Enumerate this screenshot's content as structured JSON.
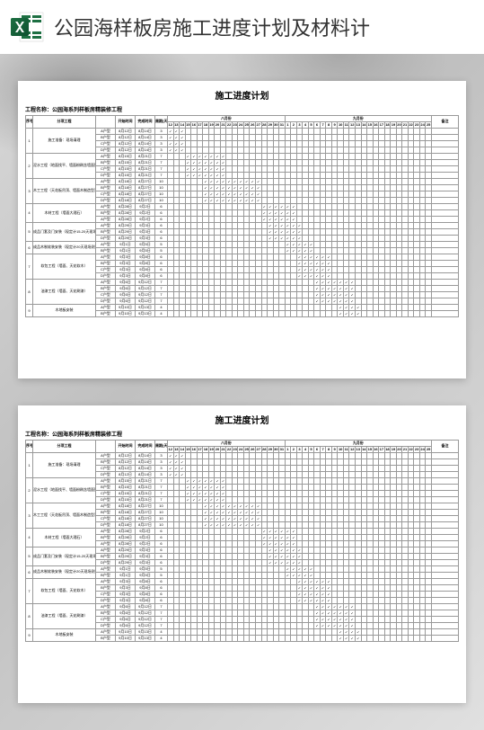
{
  "header": {
    "title": "公园海样板房施工进度计划及材料计",
    "icon": "excel-icon"
  },
  "sheet": {
    "title": "施工进度计划",
    "project_label": "工程名称：公园海系列样板房精装修工程",
    "columns": {
      "seq": "序号",
      "task": "分项工程",
      "start": "开始时间",
      "end": "完成时间",
      "days": "周期(天)",
      "month1": "八月份",
      "month2": "九月份",
      "remark": "备注"
    },
    "month1_days": [
      12,
      13,
      14,
      15,
      16,
      17,
      18,
      19,
      20,
      21,
      22,
      23,
      24,
      25,
      26,
      27,
      28,
      29,
      30,
      31
    ],
    "month2_days": [
      1,
      2,
      3,
      4,
      5,
      6,
      7,
      8,
      9,
      10,
      11,
      12,
      13,
      14,
      15,
      16,
      17,
      18,
      19,
      20,
      21,
      22,
      23,
      24,
      25
    ],
    "tasks": [
      {
        "seq": 1,
        "name": "施工准备：现场清理",
        "rows": [
          {
            "sub": "A户型",
            "start": "8月12日",
            "end": "8月14日",
            "days": 3,
            "bar": [
              0,
              2
            ]
          },
          {
            "sub": "B户型",
            "start": "8月12日",
            "end": "8月14日",
            "days": 3,
            "bar": [
              0,
              2
            ]
          },
          {
            "sub": "C户型",
            "start": "8月12日",
            "end": "8月14日",
            "days": 3,
            "bar": [
              0,
              2
            ]
          },
          {
            "sub": "D户型",
            "start": "8月12日",
            "end": "8月14日",
            "days": 3,
            "bar": [
              0,
              2
            ]
          }
        ]
      },
      {
        "seq": 2,
        "name": "泥水工程（地面找平、墙面粉刷含墙面腻子）",
        "rows": [
          {
            "sub": "A户型",
            "start": "8月15日",
            "end": "8月21日",
            "days": 7,
            "bar": [
              3,
              9
            ]
          },
          {
            "sub": "B户型",
            "start": "8月15日",
            "end": "8月21日",
            "days": 7,
            "bar": [
              3,
              9
            ]
          },
          {
            "sub": "C户型",
            "start": "8月15日",
            "end": "8月21日",
            "days": 7,
            "bar": [
              3,
              9
            ]
          },
          {
            "sub": "D户型",
            "start": "8月15日",
            "end": "8月21日",
            "days": 7,
            "bar": [
              3,
              9
            ]
          }
        ]
      },
      {
        "seq": 3,
        "name": "木工工程（天花板吊顶、墙面木制造型）",
        "rows": [
          {
            "sub": "A户型",
            "start": "8月18日",
            "end": "8月27日",
            "days": 10,
            "bar": [
              6,
              15
            ]
          },
          {
            "sub": "B户型",
            "start": "8月18日",
            "end": "8月27日",
            "days": 10,
            "bar": [
              6,
              15
            ]
          },
          {
            "sub": "C户型",
            "start": "8月18日",
            "end": "8月27日",
            "days": 10,
            "bar": [
              6,
              15
            ]
          },
          {
            "sub": "D户型",
            "start": "8月18日",
            "end": "8月27日",
            "days": 10,
            "bar": [
              6,
              15
            ]
          }
        ]
      },
      {
        "seq": 4,
        "name": "木材工程（墙面大理石）",
        "rows": [
          {
            "sub": "A户型",
            "start": "8月28日",
            "end": "9月2日",
            "days": 6,
            "bar": [
              16,
              21
            ]
          },
          {
            "sub": "B户型",
            "start": "8月28日",
            "end": "9月2日",
            "days": 6,
            "bar": [
              16,
              21
            ]
          },
          {
            "sub": "A户型",
            "start": "8月28日",
            "end": "9月2日",
            "days": 6,
            "bar": [
              16,
              21
            ]
          }
        ]
      },
      {
        "seq": 5,
        "name": "成品门套及门安装（现定计15-20天现场测量定制）",
        "rows": [
          {
            "sub": "A户型",
            "start": "8月29日",
            "end": "9月3日",
            "days": 6,
            "bar": [
              17,
              22
            ]
          },
          {
            "sub": "B户型",
            "start": "8月29日",
            "end": "9月3日",
            "days": 6,
            "bar": [
              17,
              22
            ]
          },
          {
            "sub": "D户型",
            "start": "8月29日",
            "end": "9月3日",
            "days": 6,
            "bar": [
              17,
              22
            ]
          }
        ]
      },
      {
        "seq": 6,
        "name": "成品木制软装安装（现定计20天现场测量定制）",
        "rows": [
          {
            "sub": "A户型",
            "start": "9月1日",
            "end": "9月5日",
            "days": 5,
            "bar": [
              20,
              24
            ]
          },
          {
            "sub": "B户型",
            "start": "9月1日",
            "end": "9月5日",
            "days": 5,
            "bar": [
              20,
              24
            ]
          }
        ]
      },
      {
        "seq": 7,
        "name": "软包工程（墙面、天花软木）",
        "rows": [
          {
            "sub": "A户型",
            "start": "9月3日",
            "end": "9月8日",
            "days": 6,
            "bar": [
              22,
              27
            ]
          },
          {
            "sub": "B户型",
            "start": "9月3日",
            "end": "9月8日",
            "days": 6,
            "bar": [
              22,
              27
            ]
          },
          {
            "sub": "C户型",
            "start": "9月3日",
            "end": "9月8日",
            "days": 6,
            "bar": [
              22,
              27
            ]
          },
          {
            "sub": "D户型",
            "start": "9月3日",
            "end": "9月8日",
            "days": 6,
            "bar": [
              22,
              27
            ]
          }
        ]
      },
      {
        "seq": 8,
        "name": "油漆工程（墙面、天花刷漆）",
        "rows": [
          {
            "sub": "A户型",
            "start": "9月6日",
            "end": "9月12日",
            "days": 7,
            "bar": [
              25,
              31
            ]
          },
          {
            "sub": "B户型",
            "start": "9月6日",
            "end": "9月12日",
            "days": 7,
            "bar": [
              25,
              31
            ]
          },
          {
            "sub": "C户型",
            "start": "9月6日",
            "end": "9月12日",
            "days": 7,
            "bar": [
              25,
              31
            ]
          },
          {
            "sub": "D户型",
            "start": "9月6日",
            "end": "9月12日",
            "days": 7,
            "bar": [
              25,
              31
            ]
          }
        ]
      },
      {
        "seq": 9,
        "name": "木地板安装",
        "rows": [
          {
            "sub": "A户型",
            "start": "9月10日",
            "end": "9月13日",
            "days": 4,
            "bar": [
              29,
              32
            ]
          },
          {
            "sub": "B户型",
            "start": "9月10日",
            "end": "9月13日",
            "days": 4,
            "bar": [
              29,
              32
            ]
          }
        ]
      }
    ]
  },
  "colors": {
    "header_bg": "#ffffff",
    "excel_green": "#1d6f42",
    "excel_dark": "#0e5130",
    "content_bg": "#d0d0d0",
    "sheet_bg": "#ffffff",
    "border": "#999999"
  }
}
